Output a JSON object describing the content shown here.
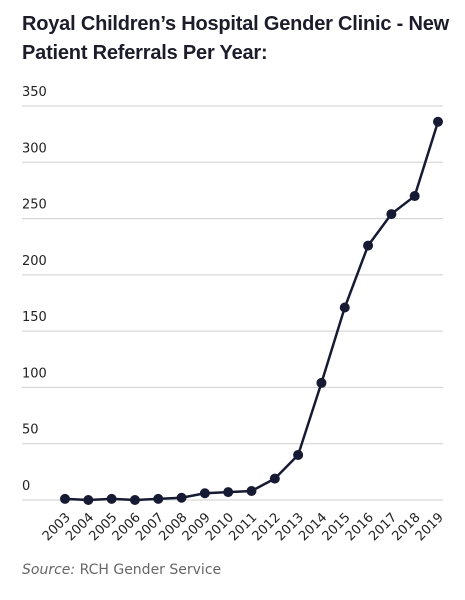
{
  "chart_data": {
    "type": "line",
    "title": "Royal Children’s Hospital Gender Clinic - New Patient Referrals Per Year:",
    "categories": [
      "2003",
      "2004",
      "2005",
      "2006",
      "2007",
      "2008",
      "2009",
      "2010",
      "2011",
      "2012",
      "2013",
      "2014",
      "2015",
      "2016",
      "2017",
      "2018",
      "2019"
    ],
    "values": [
      1,
      0,
      1,
      0,
      1,
      2,
      6,
      7,
      8,
      19,
      40,
      104,
      171,
      226,
      254,
      270,
      336
    ],
    "color": "#161a33",
    "ylim": [
      0,
      350
    ],
    "yticks": [
      0,
      50,
      100,
      150,
      200,
      250,
      300,
      350
    ],
    "grid": true,
    "source_label": "Source:",
    "source": "RCH Gender Service"
  }
}
